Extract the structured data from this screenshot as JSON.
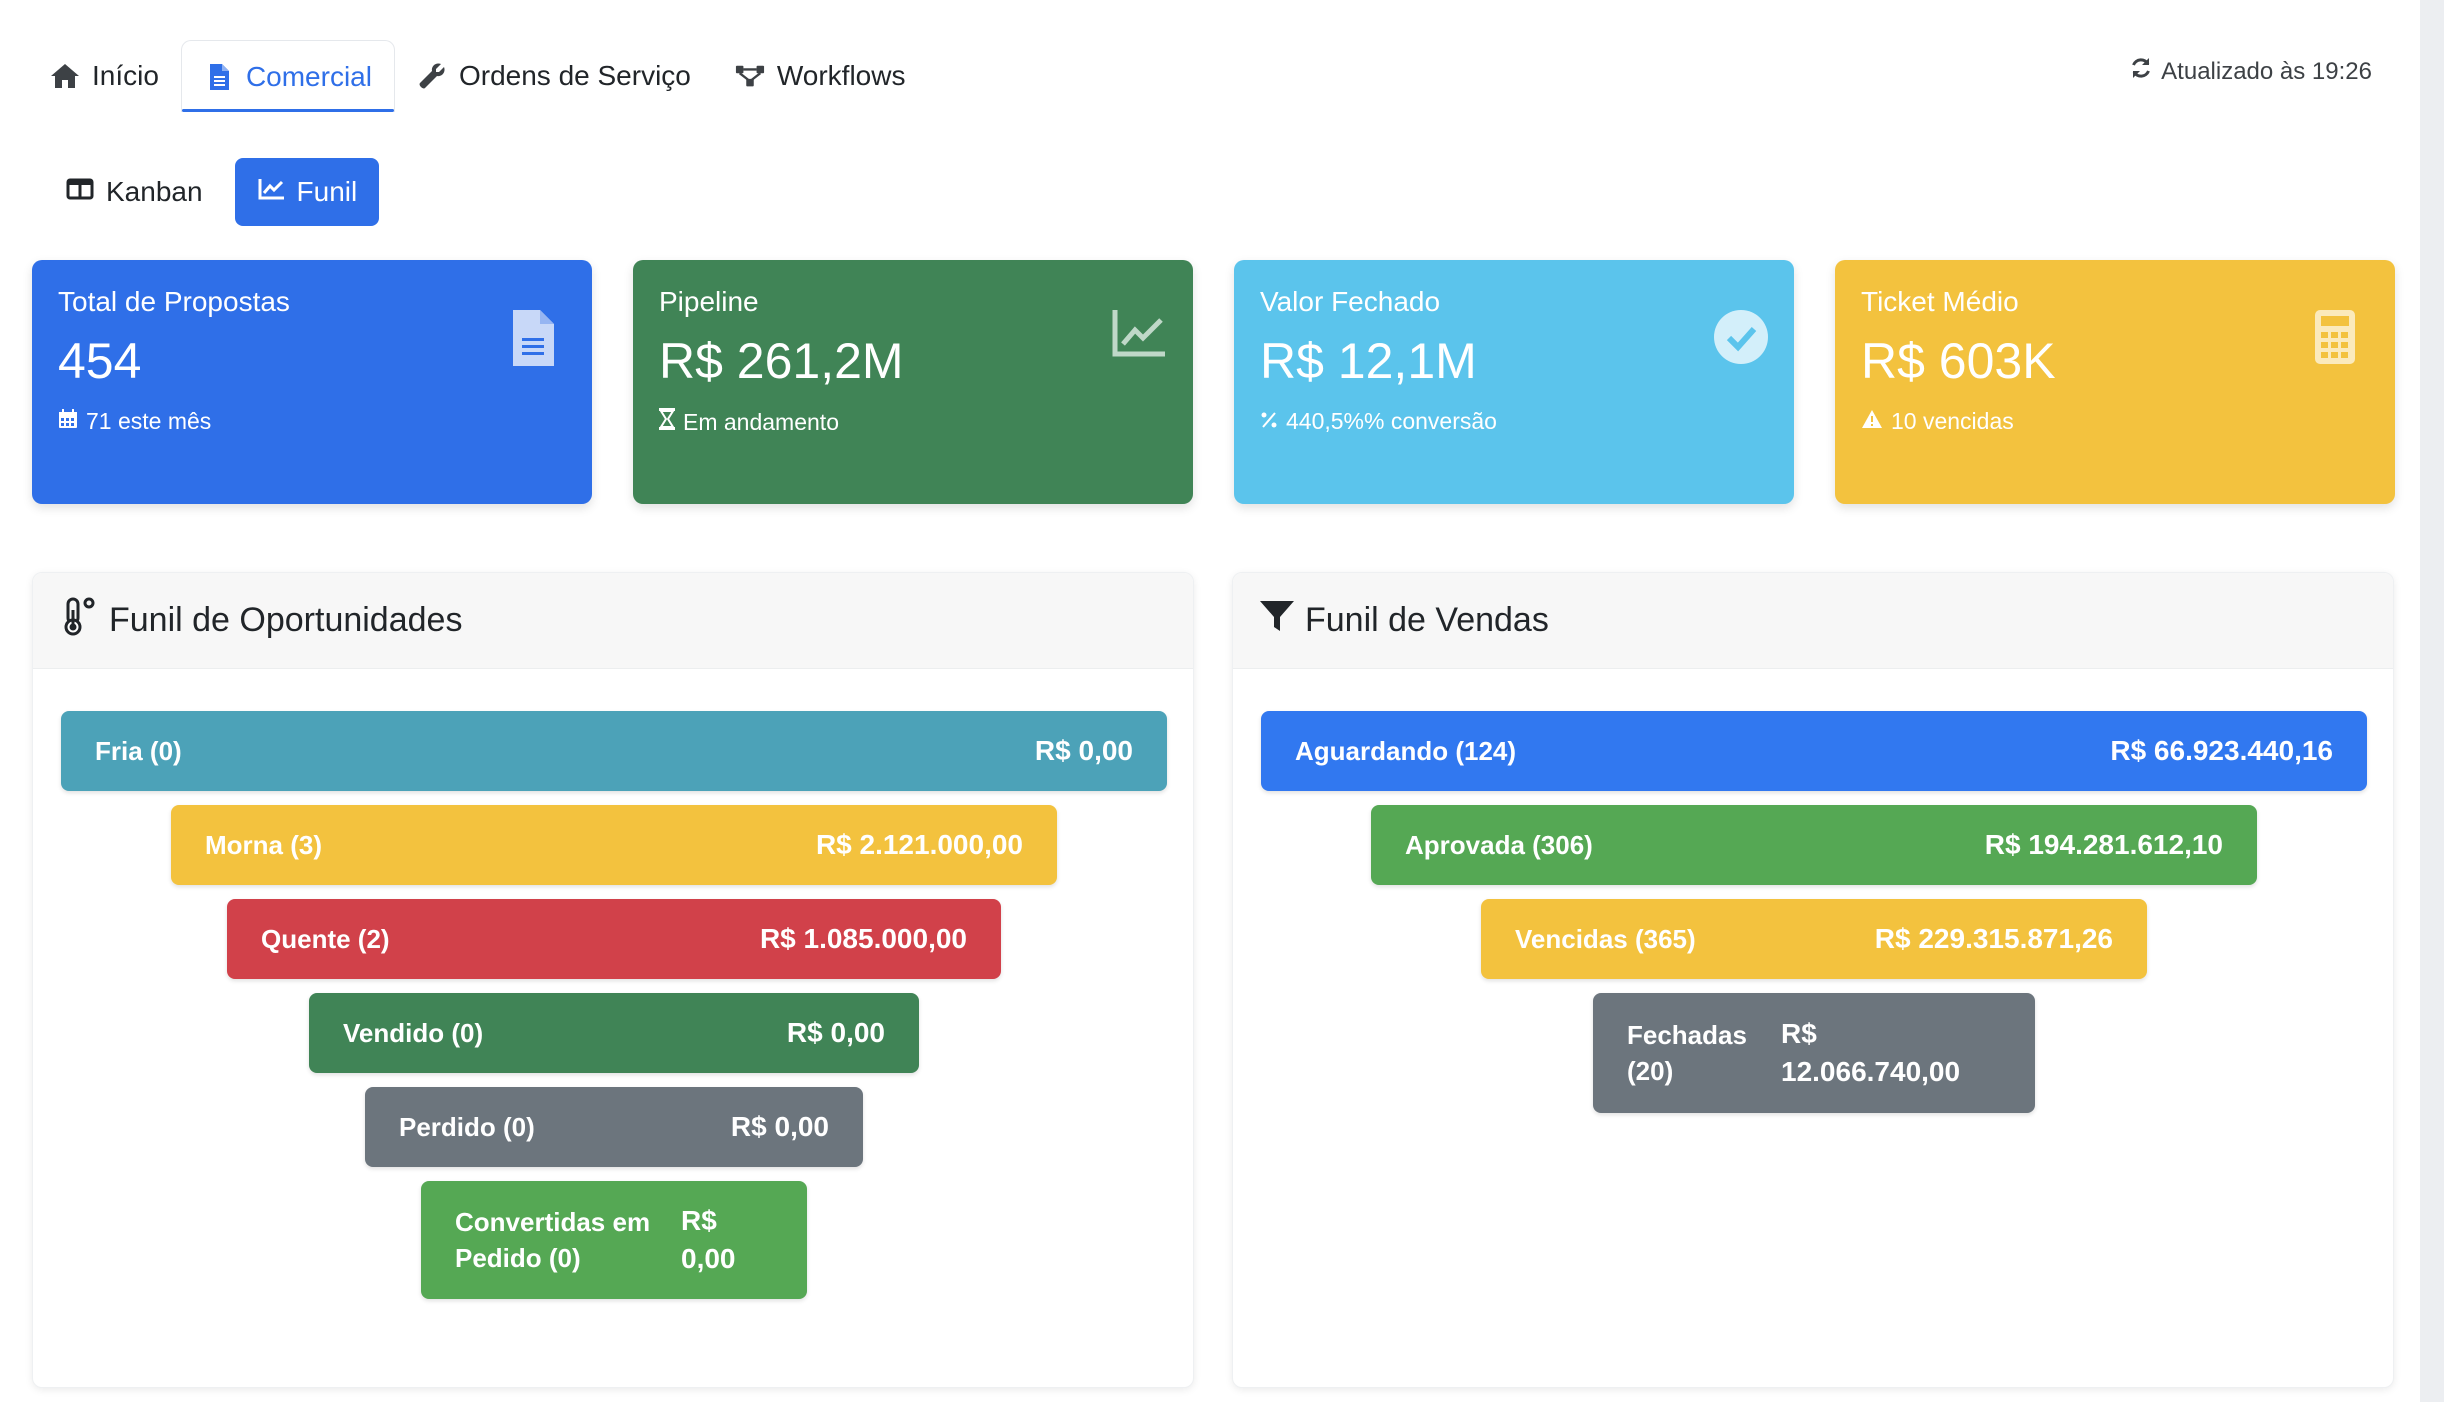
{
  "tabs": [
    {
      "label": "Início",
      "icon": "home-icon"
    },
    {
      "label": "Comercial",
      "icon": "document-icon"
    },
    {
      "label": "Ordens de Serviço",
      "icon": "wrench-icon"
    },
    {
      "label": "Workflows",
      "icon": "workflow-icon"
    }
  ],
  "active_tab": "Comercial",
  "updated_text": "Atualizado às 19:26",
  "views": [
    {
      "label": "Kanban",
      "icon": "columns-icon"
    },
    {
      "label": "Funil",
      "icon": "chart-line-icon"
    }
  ],
  "active_view": "Funil",
  "cards": {
    "total": {
      "label": "Total de Propostas",
      "value": "454",
      "sub": "71 este mês",
      "color": "#2f6fe8"
    },
    "pipeline": {
      "label": "Pipeline",
      "value": "R$ 261,2M",
      "sub": "Em andamento",
      "color": "#408456"
    },
    "fechado": {
      "label": "Valor Fechado",
      "value": "R$ 12,1M",
      "sub": "440,5%% conversão",
      "color": "#5bc4ec"
    },
    "ticket": {
      "label": "Ticket Médio",
      "value": "R$ 603K",
      "sub": "10 vencidas",
      "color": "#f3c23e"
    }
  },
  "funil_oportunidades": {
    "title": "Funil de Oportunidades",
    "stages": [
      {
        "label": "Fria (0)",
        "value": "R$ 0,00",
        "color": "#4ca2b8"
      },
      {
        "label": "Morna (3)",
        "value": "R$ 2.121.000,00",
        "color": "#f3c23e"
      },
      {
        "label": "Quente (2)",
        "value": "R$ 1.085.000,00",
        "color": "#d1414a"
      },
      {
        "label": "Vendido (0)",
        "value": "R$ 0,00",
        "color": "#408456"
      },
      {
        "label": "Perdido (0)",
        "value": "R$ 0,00",
        "color": "#6c757d"
      },
      {
        "label": "Convertidas em Pedido (0)",
        "value": "R$ 0,00",
        "color": "#55a854"
      }
    ]
  },
  "funil_vendas": {
    "title": "Funil de Vendas",
    "stages": [
      {
        "label": "Aguardando (124)",
        "value": "R$ 66.923.440,16",
        "color": "#3178f0"
      },
      {
        "label": "Aprovada (306)",
        "value": "R$ 194.281.612,10",
        "color": "#55a854"
      },
      {
        "label": "Vencidas (365)",
        "value": "R$ 229.315.871,26",
        "color": "#f3c23e"
      },
      {
        "label": "Fechadas (20)",
        "value": "R$ 12.066.740,00",
        "color": "#6c757d"
      }
    ]
  }
}
